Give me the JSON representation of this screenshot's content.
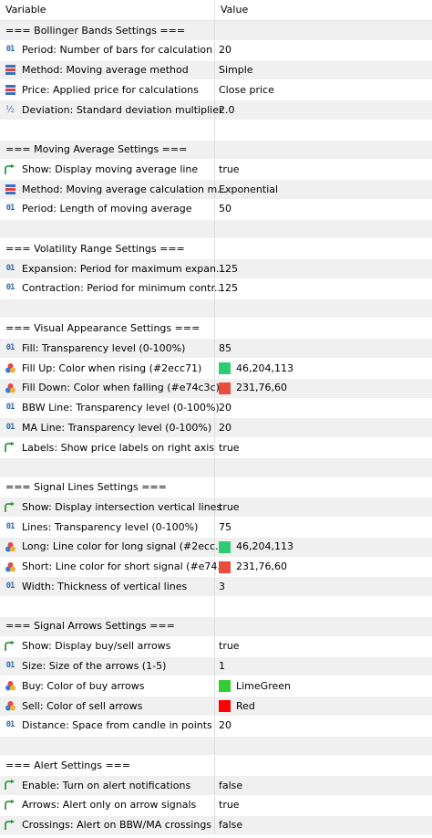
{
  "header": {
    "variable": "Variable",
    "value": "Value"
  },
  "rows": [
    {
      "type": "section",
      "label": "=== Bollinger Bands Settings ===",
      "value": ""
    },
    {
      "type": "int",
      "label": "Period: Number of bars for calculation",
      "value": "20"
    },
    {
      "type": "enum",
      "label": "Method: Moving average method",
      "value": "Simple"
    },
    {
      "type": "enum",
      "label": "Price: Applied price for calculations",
      "value": "Close price"
    },
    {
      "type": "double",
      "label": "Deviation: Standard deviation multiplier",
      "value": "2.0"
    },
    {
      "type": "blank",
      "label": "",
      "value": ""
    },
    {
      "type": "section",
      "label": "=== Moving Average Settings ===",
      "value": ""
    },
    {
      "type": "bool",
      "label": "Show: Display moving average line",
      "value": "true"
    },
    {
      "type": "enum",
      "label": "Method: Moving average calculation m...",
      "value": "Exponential"
    },
    {
      "type": "int",
      "label": "Period: Length of moving average",
      "value": "50"
    },
    {
      "type": "blank",
      "label": "",
      "value": ""
    },
    {
      "type": "section",
      "label": "=== Volatility Range Settings ===",
      "value": ""
    },
    {
      "type": "int",
      "label": "Expansion: Period for maximum expan...",
      "value": "125"
    },
    {
      "type": "int",
      "label": "Contraction: Period for minimum contr...",
      "value": "125"
    },
    {
      "type": "blank",
      "label": "",
      "value": ""
    },
    {
      "type": "section",
      "label": "=== Visual Appearance Settings ===",
      "value": ""
    },
    {
      "type": "int",
      "label": "Fill: Transparency level (0-100%)",
      "value": "85"
    },
    {
      "type": "color",
      "label": "Fill Up: Color when rising (#2ecc71)",
      "value": "46,204,113",
      "color": "#2ecc71"
    },
    {
      "type": "color",
      "label": "Fill Down: Color when falling (#e74c3c)",
      "value": "231,76,60",
      "color": "#e74c3c"
    },
    {
      "type": "int",
      "label": "BBW Line: Transparency level (0-100%)",
      "value": "20"
    },
    {
      "type": "int",
      "label": "MA Line: Transparency level (0-100%)",
      "value": "20"
    },
    {
      "type": "bool",
      "label": "Labels: Show price labels on right axis",
      "value": "true"
    },
    {
      "type": "blank",
      "label": "",
      "value": ""
    },
    {
      "type": "section",
      "label": "=== Signal Lines Settings ===",
      "value": ""
    },
    {
      "type": "bool",
      "label": "Show: Display intersection vertical lines",
      "value": "true"
    },
    {
      "type": "int",
      "label": "Lines: Transparency level (0-100%)",
      "value": "75"
    },
    {
      "type": "color",
      "label": "Long: Line color for long signal (#2ecc...",
      "value": "46,204,113",
      "color": "#2ecc71"
    },
    {
      "type": "color",
      "label": "Short: Line color for short signal (#e74...",
      "value": "231,76,60",
      "color": "#e74c3c"
    },
    {
      "type": "int",
      "label": "Width: Thickness of vertical lines",
      "value": "3"
    },
    {
      "type": "blank",
      "label": "",
      "value": ""
    },
    {
      "type": "section",
      "label": "=== Signal Arrows Settings ===",
      "value": ""
    },
    {
      "type": "bool",
      "label": "Show: Display buy/sell arrows",
      "value": "true"
    },
    {
      "type": "int",
      "label": "Size: Size of the arrows (1-5)",
      "value": "1"
    },
    {
      "type": "color",
      "label": "Buy: Color of buy arrows",
      "value": "LimeGreen",
      "color": "#32cd32"
    },
    {
      "type": "color",
      "label": "Sell: Color of sell arrows",
      "value": "Red",
      "color": "#ff0000"
    },
    {
      "type": "int",
      "label": "Distance: Space from candle in points",
      "value": "20"
    },
    {
      "type": "blank",
      "label": "",
      "value": ""
    },
    {
      "type": "section",
      "label": "=== Alert Settings ===",
      "value": ""
    },
    {
      "type": "bool",
      "label": "Enable: Turn on alert notifications",
      "value": "false"
    },
    {
      "type": "bool",
      "label": "Arrows: Alert only on arrow signals",
      "value": "true"
    },
    {
      "type": "bool",
      "label": "Crossings: Alert on BBW/MA crossings",
      "value": "false"
    }
  ],
  "icons": {
    "int": "int-type-icon",
    "enum": "enum-type-icon",
    "double": "double-type-icon",
    "bool": "bool-type-icon",
    "color": "color-type-icon"
  },
  "colors": {
    "icon_blue": "#2f6ab3",
    "bool_green": "#2e9a3a",
    "row_alt": "#f0f0f0"
  }
}
